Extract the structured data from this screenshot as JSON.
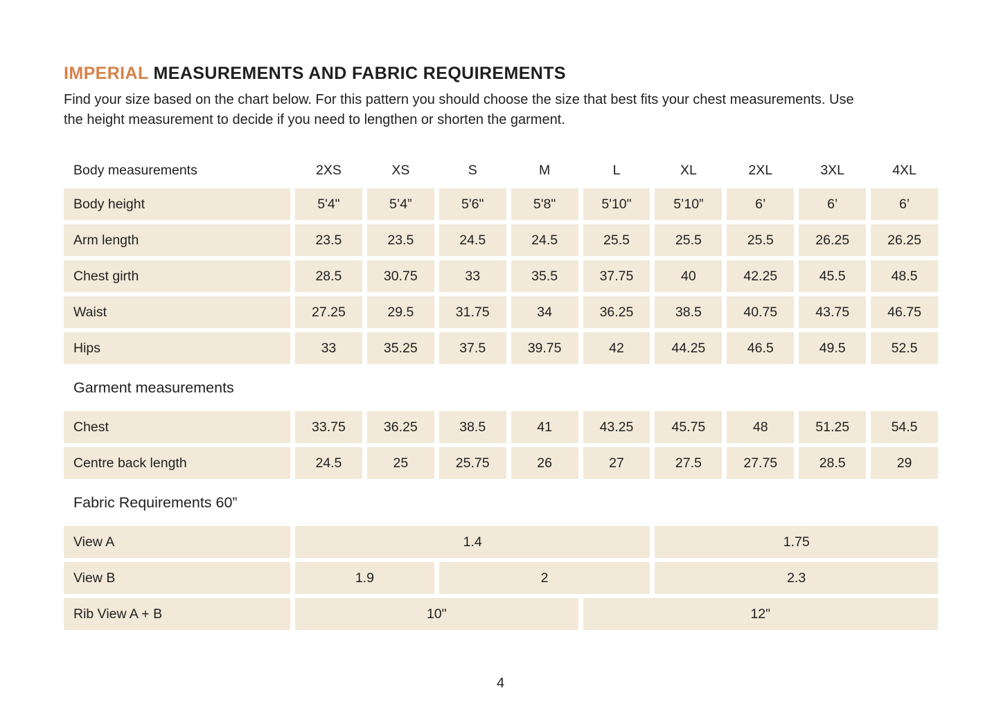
{
  "page": {
    "number": "4"
  },
  "colors": {
    "accent_orange": "#d6824a",
    "cell_beige": "#f2e9d8",
    "text_dark": "#1f1f1f",
    "background": "#ffffff"
  },
  "header": {
    "title_accent": "IMPERIAL",
    "title_rest": " MEASUREMENTS AND FABRIC REQUIREMENTS",
    "intro": "Find your size based on the chart below. For this pattern you should choose the size that best fits your chest measurements. Use the height measurement to decide if you need to lengthen or shorten the garment."
  },
  "size_chart": {
    "header_label": "Body measurements",
    "sizes": [
      "2XS",
      "XS",
      "S",
      "M",
      "L",
      "XL",
      "2XL",
      "3XL",
      "4XL"
    ],
    "body_rows": [
      {
        "label": "Body height",
        "values": [
          "5'4\"",
          "5’4”",
          "5'6\"",
          "5'8\"",
          "5'10\"",
          "5’10”",
          "6’",
          "6’",
          "6’"
        ]
      },
      {
        "label": "Arm length",
        "values": [
          "23.5",
          "23.5",
          "24.5",
          "24.5",
          "25.5",
          "25.5",
          "25.5",
          "26.25",
          "26.25"
        ]
      },
      {
        "label": "Chest girth",
        "values": [
          "28.5",
          "30.75",
          "33",
          "35.5",
          "37.75",
          "40",
          "42.25",
          "45.5",
          "48.5"
        ]
      },
      {
        "label": "Waist",
        "values": [
          "27.25",
          "29.5",
          "31.75",
          "34",
          "36.25",
          "38.5",
          "40.75",
          "43.75",
          "46.75"
        ]
      },
      {
        "label": "Hips",
        "values": [
          "33",
          "35.25",
          "37.5",
          "39.75",
          "42",
          "44.25",
          "46.5",
          "49.5",
          "52.5"
        ]
      }
    ],
    "garment_section_label": "Garment measurements",
    "garment_rows": [
      {
        "label": "Chest",
        "values": [
          "33.75",
          "36.25",
          "38.5",
          "41",
          "43.25",
          "45.75",
          "48",
          "51.25",
          "54.5"
        ]
      },
      {
        "label": "Centre back length",
        "values": [
          "24.5",
          "25",
          "25.75",
          "26",
          "27",
          "27.5",
          "27.75",
          "28.5",
          "29"
        ]
      }
    ],
    "fabric_section_label": "Fabric Requirements 60”",
    "fabric_rows": [
      {
        "label": "View A",
        "cells": [
          {
            "value": "1.4",
            "span": 5
          },
          {
            "value": "1.75",
            "span": 4
          }
        ]
      },
      {
        "label": "View B",
        "cells": [
          {
            "value": "1.9",
            "span": 2
          },
          {
            "value": "2",
            "span": 3
          },
          {
            "value": "2.3",
            "span": 4
          }
        ]
      },
      {
        "label": "Rib View A + B",
        "cells": [
          {
            "value": "10\"",
            "span": 4
          },
          {
            "value": "12\"",
            "span": 5
          }
        ]
      }
    ]
  }
}
